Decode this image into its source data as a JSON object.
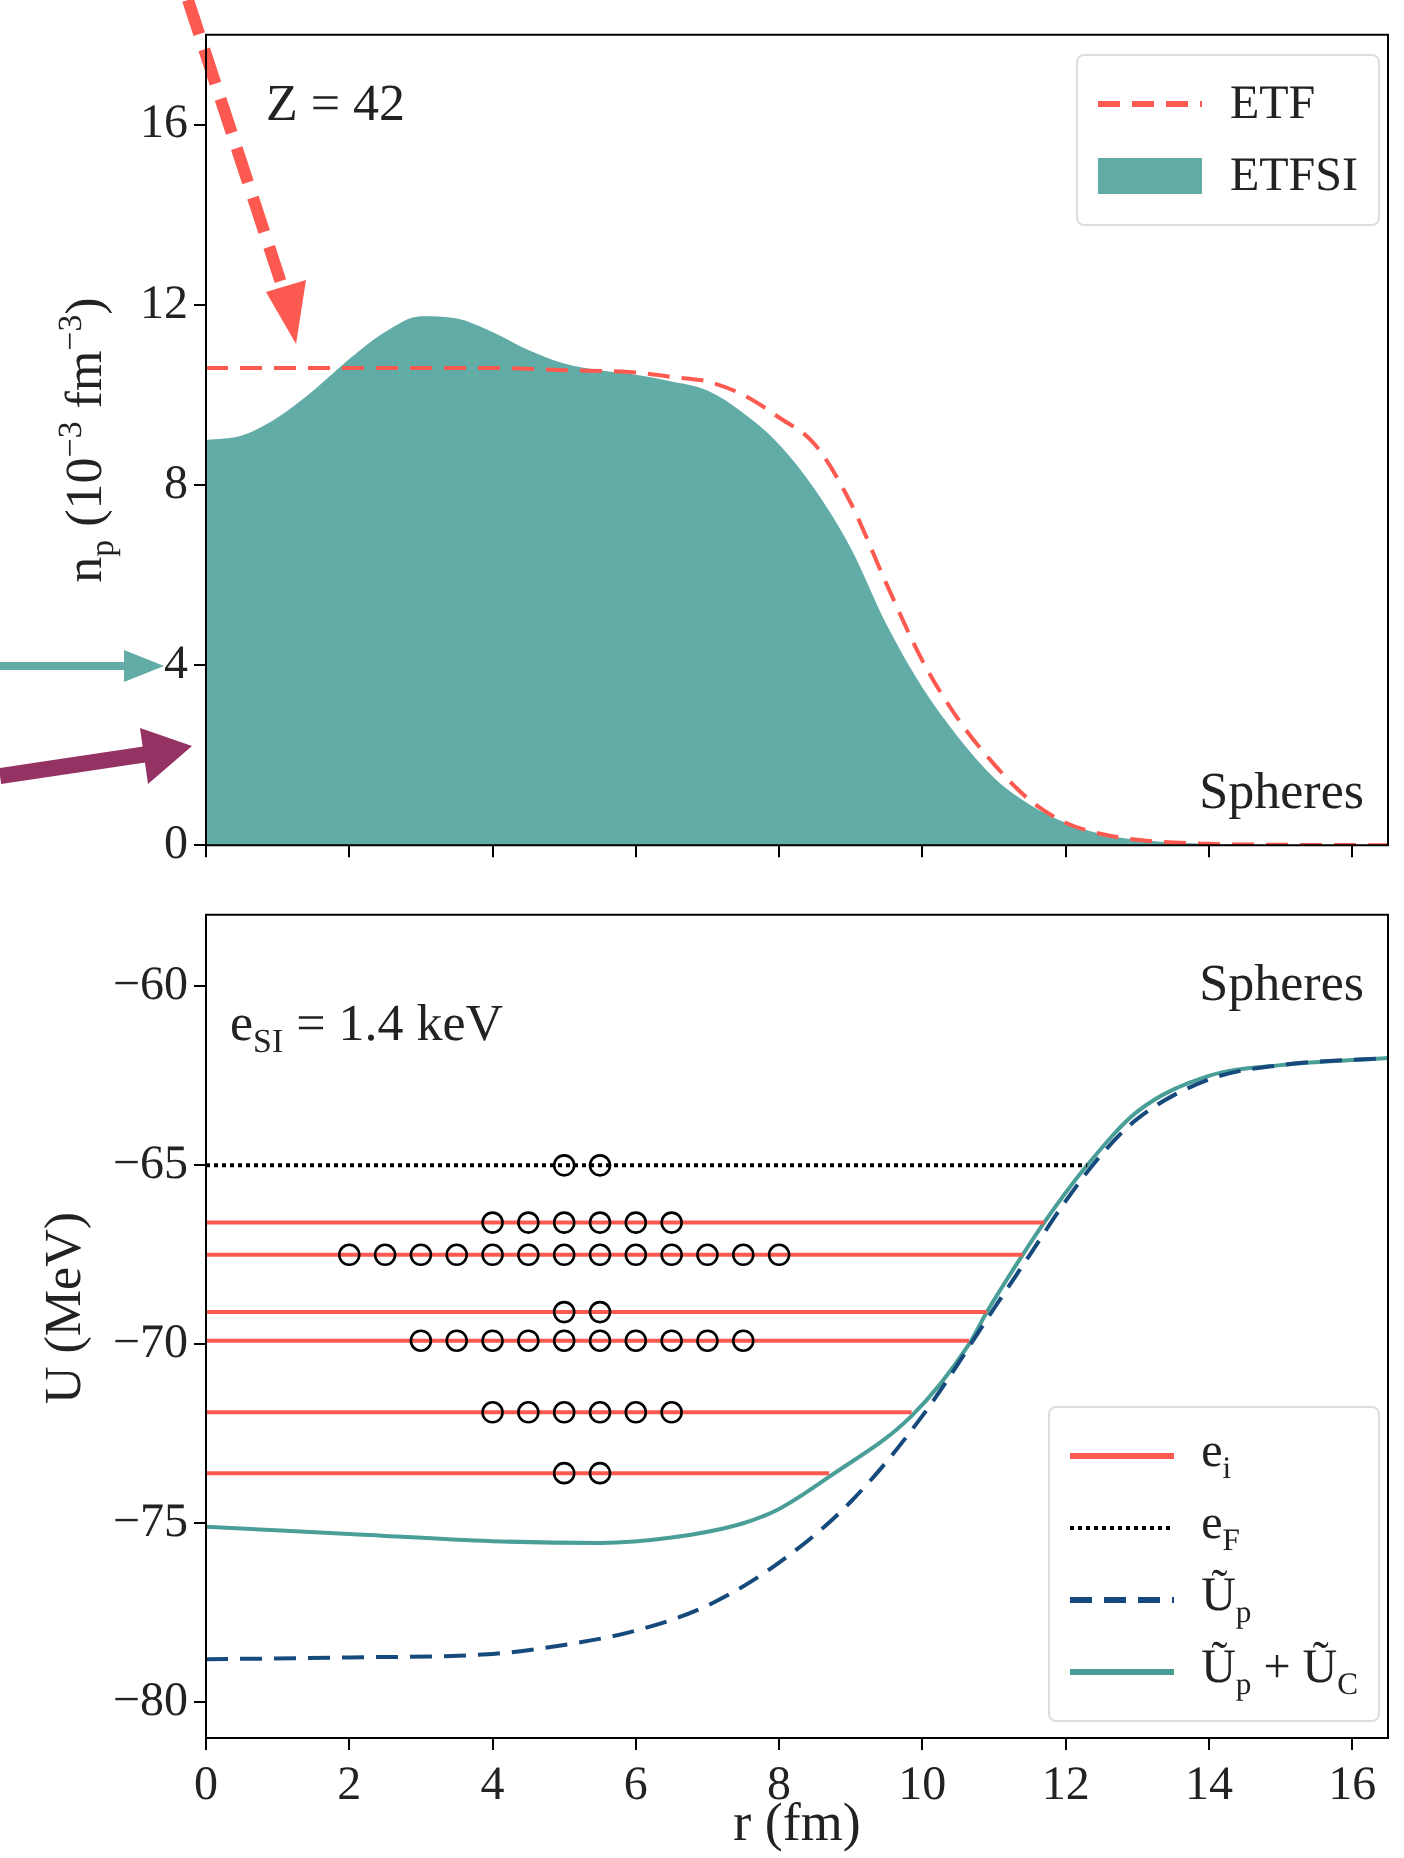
{
  "chart_data": [
    {
      "type": "area",
      "ylabel": "n$_{p}$ (10$^{−3}$ fm$^{−3}$)",
      "annotations": [
        "Z = 42",
        "Spheres"
      ],
      "xlim": [
        0,
        16.5
      ],
      "xticks": [
        0,
        2,
        4,
        6,
        8,
        10,
        12,
        14,
        16
      ],
      "ylim": [
        0,
        18
      ],
      "yticks": [
        0,
        4,
        8,
        12,
        16
      ],
      "tick_labels": "y",
      "legend": "top right",
      "series": [
        {
          "name": "ETF",
          "type": "line",
          "line_style": "dashed",
          "color": "#fc5a50",
          "x": [
            0,
            1,
            2,
            3,
            4,
            5,
            6,
            6.5,
            7,
            7.5,
            8,
            8.5,
            9,
            9.5,
            10,
            10.5,
            11,
            11.5,
            12,
            12.5,
            13,
            14,
            15,
            16.5
          ],
          "values": [
            10.6,
            10.6,
            10.6,
            10.6,
            10.6,
            10.55,
            10.5,
            10.4,
            10.3,
            10.0,
            9.5,
            8.9,
            7.6,
            5.8,
            4.1,
            2.8,
            1.8,
            1.0,
            0.5,
            0.25,
            0.12,
            0.03,
            0.01,
            0
          ]
        },
        {
          "name": "ETFSI",
          "color": "#62aca8",
          "x": [
            0,
            0.5,
            1,
            1.5,
            2,
            2.5,
            3,
            3.5,
            4,
            4.5,
            5,
            5.5,
            6,
            6.5,
            7,
            7.5,
            8,
            8.5,
            9,
            9.5,
            10,
            10.5,
            11,
            11.5,
            12,
            12.5,
            13,
            14,
            15,
            16.5
          ],
          "values": [
            9.0,
            9.1,
            9.5,
            10.1,
            10.8,
            11.4,
            11.75,
            11.7,
            11.4,
            11.0,
            10.7,
            10.55,
            10.45,
            10.3,
            10.1,
            9.6,
            8.9,
            7.9,
            6.6,
            4.9,
            3.5,
            2.4,
            1.5,
            0.9,
            0.5,
            0.25,
            0.12,
            0.03,
            0,
            0
          ]
        }
      ]
    },
    {
      "type": "line",
      "xlabel": "r (fm)",
      "ylabel": "U (MeV)",
      "annotations": [
        "e$_{SI}$ = 1.4 keV",
        "Spheres"
      ],
      "xlim": [
        0,
        16.5
      ],
      "xticks": [
        0,
        2,
        4,
        6,
        8,
        10,
        12,
        14,
        16
      ],
      "ylim": [
        -81,
        -58
      ],
      "yticks": [
        -80,
        -75,
        -70,
        -65,
        -60
      ],
      "legend": "bottom right",
      "marker": "none",
      "series": [
        {
          "name": "e$_{i}$",
          "color": "#fc5a50",
          "x": [
            0,
            11.7
          ],
          "values": [
            -66.6,
            -66.6
          ]
        },
        {
          "color": "#fc5a50",
          "x": [
            0,
            11.4
          ],
          "values": [
            -67.5,
            -67.5
          ]
        },
        {
          "color": "#fc5a50",
          "x": [
            0,
            10.9
          ],
          "values": [
            -69.1,
            -69.1
          ]
        },
        {
          "color": "#fc5a50",
          "x": [
            0,
            10.65
          ],
          "values": [
            -69.9,
            -69.9
          ]
        },
        {
          "color": "#fc5a50",
          "x": [
            0,
            9.85
          ],
          "values": [
            -71.9,
            -71.9
          ]
        },
        {
          "color": "#fc5a50",
          "x": [
            0,
            8.7
          ],
          "values": [
            -73.6,
            -73.6
          ]
        },
        {
          "name": "e$_{F}$",
          "color": "#000000",
          "line_style": "dotted",
          "x": [
            0,
            12.3
          ],
          "values": [
            -65,
            -65
          ]
        },
        {
          "name": "Ũ$_{p}$",
          "color": "#174a7c",
          "line_style": "dashed",
          "x": [
            0,
            2,
            4,
            5,
            6,
            7,
            8,
            9,
            10,
            11,
            11.5,
            12,
            12.5,
            13,
            14,
            15,
            16.5
          ],
          "values": [
            -78.8,
            -78.75,
            -78.65,
            -78.4,
            -78.0,
            -77.3,
            -76.1,
            -74.4,
            -72.0,
            -69.0,
            -67.5,
            -66.0,
            -64.7,
            -63.7,
            -62.6,
            -62.2,
            -62.0
          ]
        },
        {
          "name": "Ũ$_{p}$ + Ũ$_{C}$",
          "color": "#4a9e98",
          "x": [
            0,
            2,
            4,
            5.5,
            6.5,
            7.5,
            8,
            8.7,
            9.85,
            10.65,
            10.9,
            11.4,
            11.7,
            12.3,
            13,
            14,
            15,
            16.5
          ],
          "values": [
            -75.1,
            -75.3,
            -75.5,
            -75.55,
            -75.4,
            -75.0,
            -74.6,
            -73.7,
            -72.0,
            -70.0,
            -69.1,
            -67.5,
            -66.6,
            -65.0,
            -63.5,
            -62.5,
            -62.2,
            -62.0
          ]
        },
        {
          "type": "scatter",
          "marker": "circle",
          "color": "#000000",
          "x": [
            5,
            5.5,
            4,
            4.5,
            5,
            5.5,
            6,
            6.5,
            2,
            2.5,
            3,
            3.5,
            4,
            4.5,
            5,
            5.5,
            6,
            6.5,
            7,
            7.5,
            8,
            5,
            5.5,
            3,
            3.5,
            4,
            4.5,
            5,
            5.5,
            6,
            6.5,
            7,
            7.5,
            4,
            4.5,
            5,
            5.5,
            6,
            6.5,
            5,
            5.5
          ],
          "values": [
            -65,
            -65,
            -66.6,
            -66.6,
            -66.6,
            -66.6,
            -66.6,
            -66.6,
            -67.5,
            -67.5,
            -67.5,
            -67.5,
            -67.5,
            -67.5,
            -67.5,
            -67.5,
            -67.5,
            -67.5,
            -67.5,
            -67.5,
            -67.5,
            -69.1,
            -69.1,
            -69.9,
            -69.9,
            -69.9,
            -69.9,
            -69.9,
            -69.9,
            -69.9,
            -69.9,
            -69.9,
            -69.9,
            -71.9,
            -71.9,
            -71.9,
            -71.9,
            -71.9,
            -71.9,
            -73.6,
            -73.6
          ]
        }
      ]
    }
  ]
}
